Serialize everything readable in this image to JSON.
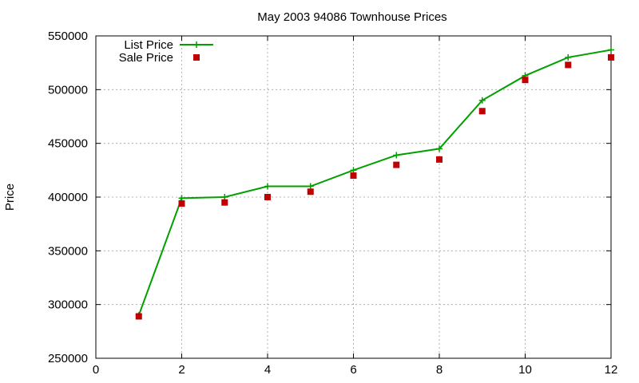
{
  "chart_data": {
    "type": "line",
    "title": "May 2003 94086 Townhouse Prices",
    "xlabel": "",
    "ylabel": "Price",
    "xlim": [
      0,
      12
    ],
    "ylim": [
      250000,
      550000
    ],
    "xticks": [
      0,
      2,
      4,
      6,
      8,
      10,
      12
    ],
    "yticks": [
      250000,
      300000,
      350000,
      400000,
      450000,
      500000,
      550000
    ],
    "grid": true,
    "legend_position": "top-left",
    "series": [
      {
        "name": "List Price",
        "style": "line-with-plus-markers",
        "color": "#00a000",
        "x": [
          1,
          2,
          3,
          4,
          5,
          6,
          7,
          8,
          9,
          10,
          11,
          12
        ],
        "values": [
          290000,
          399000,
          400000,
          410000,
          410000,
          425000,
          439000,
          445000,
          490000,
          513000,
          530000,
          537000
        ]
      },
      {
        "name": "Sale Price",
        "style": "square-markers",
        "color": "#c00000",
        "x": [
          1,
          2,
          3,
          4,
          5,
          6,
          7,
          8,
          9,
          10,
          11,
          12
        ],
        "values": [
          289000,
          394000,
          395000,
          400000,
          405000,
          420000,
          430000,
          435000,
          480000,
          509000,
          523000,
          530000
        ]
      }
    ]
  }
}
